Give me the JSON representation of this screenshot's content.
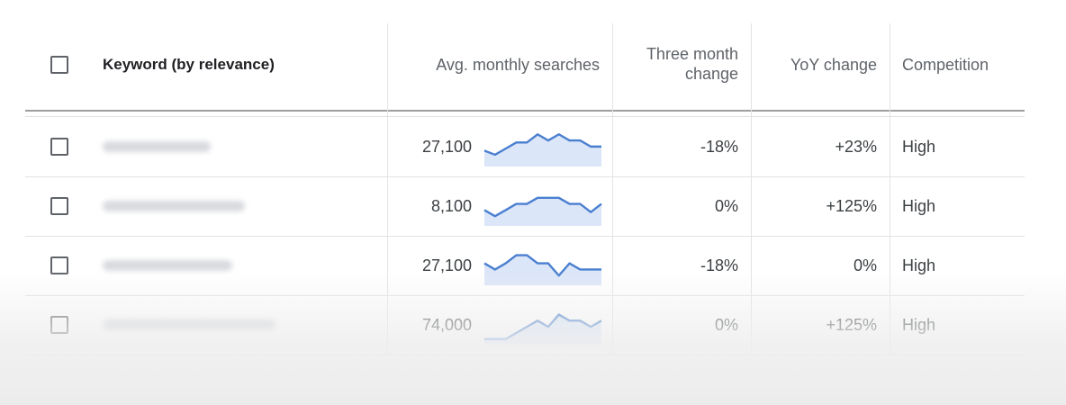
{
  "header": {
    "keyword": "Keyword (by relevance)",
    "avg_monthly": "Avg. monthly searches",
    "three_month_line1": "Three month",
    "three_month_line2": "change",
    "yoy": "YoY change",
    "competition": "Competition"
  },
  "rows": [
    {
      "avg": "27,100",
      "three_month": "-18%",
      "yoy": "+23%",
      "competition": "High",
      "trend": [
        6,
        4,
        7,
        10,
        10,
        14,
        11,
        14,
        11,
        11,
        8,
        8
      ]
    },
    {
      "avg": "8,100",
      "three_month": "0%",
      "yoy": "+125%",
      "competition": "High",
      "trend": [
        6,
        3,
        6,
        9,
        9,
        12,
        12,
        12,
        9,
        9,
        5,
        9
      ]
    },
    {
      "avg": "27,100",
      "three_month": "-18%",
      "yoy": "0%",
      "competition": "High",
      "trend": [
        9,
        6,
        9,
        13,
        13,
        9,
        9,
        3,
        9,
        6,
        6,
        6
      ]
    },
    {
      "avg": "74,000",
      "three_month": "0%",
      "yoy": "+125%",
      "competition": "High",
      "trend": [
        1,
        1,
        1,
        4,
        7,
        10,
        7,
        13,
        10,
        10,
        7,
        10
      ]
    }
  ],
  "colors": {
    "spark_line": "#4a7fd0",
    "spark_fill": "#dbe6f8"
  }
}
